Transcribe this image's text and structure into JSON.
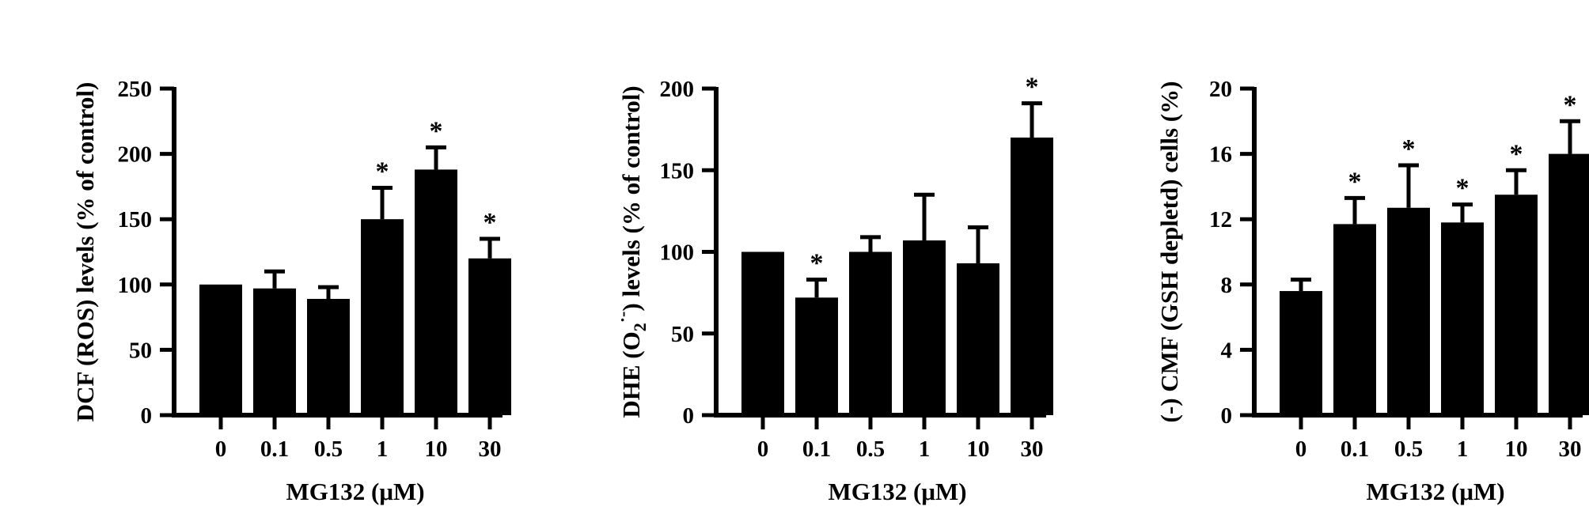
{
  "chart_data": [
    {
      "type": "bar",
      "categories": [
        "0",
        "0.1",
        "0.5",
        "1",
        "10",
        "30"
      ],
      "values": [
        100,
        97,
        89,
        150,
        188,
        120
      ],
      "errors": [
        0,
        13,
        9,
        24,
        17,
        15
      ],
      "significant": [
        false,
        false,
        false,
        true,
        true,
        true
      ],
      "ylim": [
        0,
        250
      ],
      "yticks": [
        "0",
        "50",
        "100",
        "150",
        "200",
        "250"
      ],
      "ylabel": "DCF (ROS) levels (% of control)",
      "xlabel": "MG132 (μM)",
      "significance_marker": "*",
      "bar_color": "#000000"
    },
    {
      "type": "bar",
      "categories": [
        "0",
        "0.1",
        "0.5",
        "1",
        "10",
        "30"
      ],
      "values": [
        100,
        72,
        100,
        107,
        93,
        170
      ],
      "errors": [
        0,
        11,
        9,
        28,
        22,
        21
      ],
      "significant": [
        false,
        true,
        false,
        false,
        false,
        true
      ],
      "ylim": [
        0,
        200
      ],
      "yticks": [
        "0",
        "50",
        "100",
        "150",
        "200"
      ],
      "ylabel": "DHE (O2•−) levels (% of control)",
      "ylabel_parts": {
        "pre": "DHE (O",
        "sub": "2",
        "sup": "·-",
        "post": ") levels (% of control)"
      },
      "xlabel": "MG132 (μM)",
      "significance_marker": "*",
      "bar_color": "#000000"
    },
    {
      "type": "bar",
      "categories": [
        "0",
        "0.1",
        "0.5",
        "1",
        "10",
        "30"
      ],
      "values": [
        7.6,
        11.7,
        12.7,
        11.8,
        13.5,
        16.0
      ],
      "errors": [
        0.7,
        1.6,
        2.6,
        1.1,
        1.5,
        2.0
      ],
      "significant": [
        false,
        true,
        true,
        true,
        true,
        true
      ],
      "ylim": [
        0,
        20
      ],
      "yticks": [
        "0",
        "4",
        "8",
        "12",
        "16",
        "20"
      ],
      "ylabel": "(-) CMF (GSH depletd) cells (%)",
      "xlabel": "MG132 (μM)",
      "significance_marker": "*",
      "bar_color": "#000000"
    }
  ]
}
